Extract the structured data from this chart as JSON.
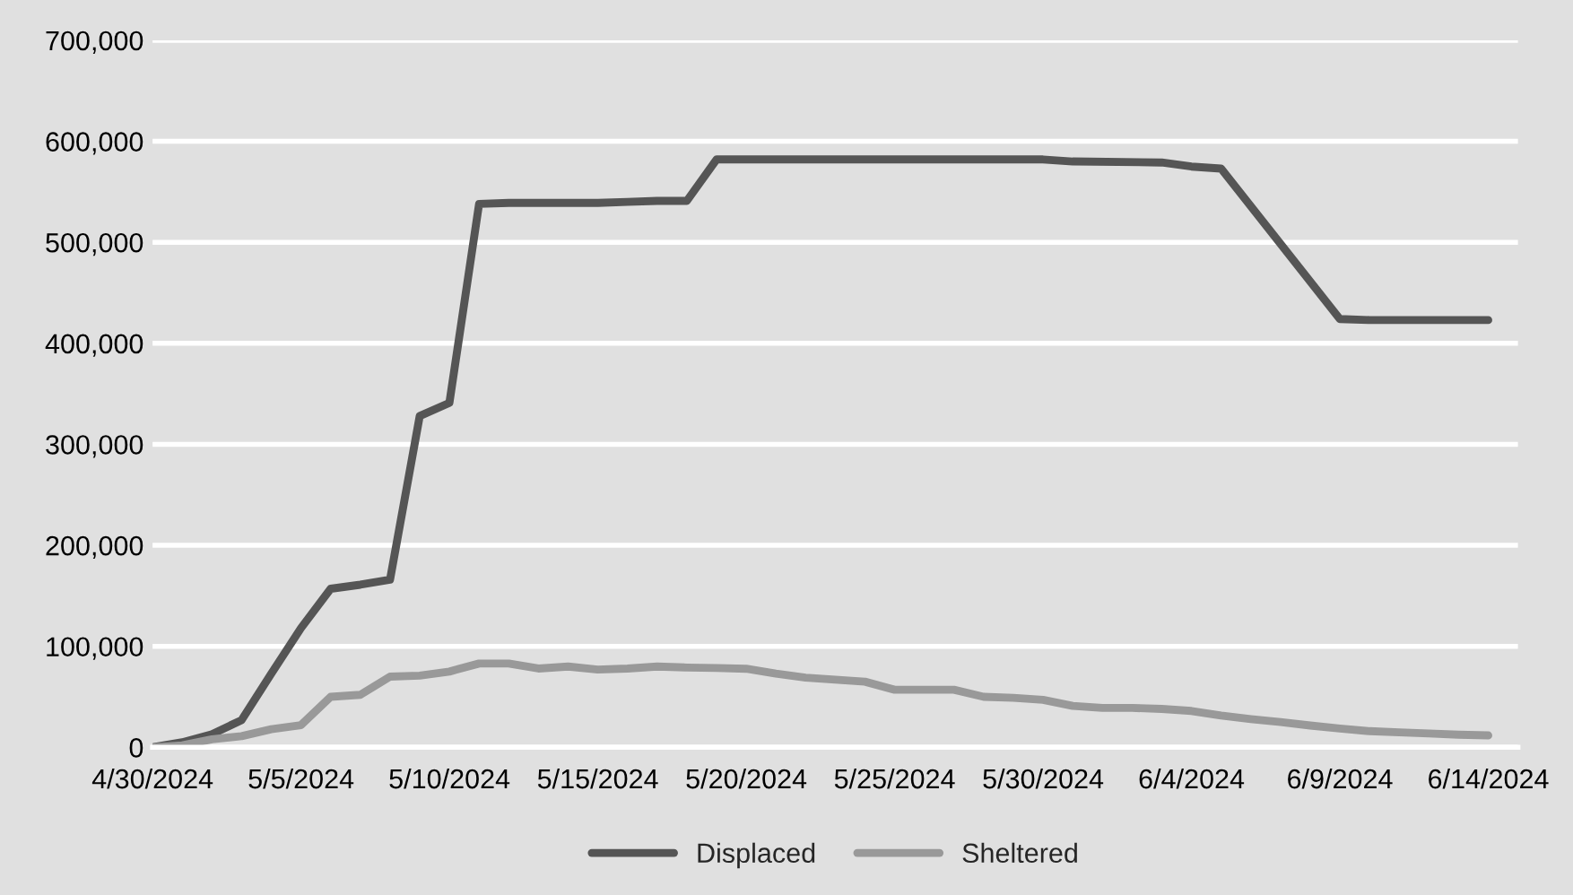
{
  "chart_data": {
    "type": "line",
    "xlim": [
      "2024-04-30",
      "2024-06-15"
    ],
    "xticks": [
      {
        "value": "2024-04-30",
        "label": "4/30/2024"
      },
      {
        "value": "2024-05-05",
        "label": "5/5/2024"
      },
      {
        "value": "2024-05-10",
        "label": "5/10/2024"
      },
      {
        "value": "2024-05-15",
        "label": "5/15/2024"
      },
      {
        "value": "2024-05-20",
        "label": "5/20/2024"
      },
      {
        "value": "2024-05-25",
        "label": "5/25/2024"
      },
      {
        "value": "2024-05-30",
        "label": "5/30/2024"
      },
      {
        "value": "2024-06-04",
        "label": "6/4/2024"
      },
      {
        "value": "2024-06-09",
        "label": "6/9/2024"
      },
      {
        "value": "2024-06-14",
        "label": "6/14/2024"
      }
    ],
    "ylim": [
      0,
      700000
    ],
    "yticks": [
      0,
      {
        "value": 100000,
        "label": "100,000"
      },
      {
        "value": 200000,
        "label": "200,000"
      },
      {
        "value": 300000,
        "label": "300,000"
      },
      {
        "value": 400000,
        "label": "400,000"
      },
      {
        "value": 500000,
        "label": "500,000"
      },
      {
        "value": 600000,
        "label": "600,000"
      },
      {
        "value": 700000,
        "label": "700,000"
      }
    ],
    "grid": "y",
    "legend": "bottom",
    "marker": "none",
    "line_style": "solid",
    "series": [
      {
        "name": "Displaced",
        "color": "#555555",
        "x": [
          "2024-04-30",
          "2024-05-01",
          "2024-05-02",
          "2024-05-03",
          "2024-05-04",
          "2024-05-05",
          "2024-05-06",
          "2024-05-07",
          "2024-05-08",
          "2024-05-09",
          "2024-05-10",
          "2024-05-11",
          "2024-05-12",
          "2024-05-13",
          "2024-05-14",
          "2024-05-15",
          "2024-05-16",
          "2024-05-17",
          "2024-05-18",
          "2024-05-19",
          "2024-05-30",
          "2024-05-31",
          "2024-06-03",
          "2024-06-04",
          "2024-06-05",
          "2024-06-09",
          "2024-06-10",
          "2024-06-14"
        ],
        "values": [
          0,
          5000,
          13000,
          27000,
          73000,
          118000,
          157000,
          161000,
          166000,
          328000,
          341000,
          538000,
          539000,
          539000,
          539000,
          539000,
          540000,
          541000,
          541000,
          582000,
          582000,
          580000,
          579000,
          575000,
          573000,
          424000,
          423000,
          423000
        ]
      },
      {
        "name": "Sheltered",
        "color": "#999999",
        "x": [
          "2024-04-30",
          "2024-05-01",
          "2024-05-02",
          "2024-05-03",
          "2024-05-04",
          "2024-05-05",
          "2024-05-06",
          "2024-05-07",
          "2024-05-08",
          "2024-05-09",
          "2024-05-10",
          "2024-05-11",
          "2024-05-12",
          "2024-05-13",
          "2024-05-14",
          "2024-05-15",
          "2024-05-16",
          "2024-05-17",
          "2024-05-18",
          "2024-05-19",
          "2024-05-20",
          "2024-05-21",
          "2024-05-22",
          "2024-05-23",
          "2024-05-24",
          "2024-05-25",
          "2024-05-26",
          "2024-05-27",
          "2024-05-28",
          "2024-05-29",
          "2024-05-30",
          "2024-05-31",
          "2024-06-01",
          "2024-06-02",
          "2024-06-03",
          "2024-06-04",
          "2024-06-05",
          "2024-06-06",
          "2024-06-07",
          "2024-06-08",
          "2024-06-09",
          "2024-06-10",
          "2024-06-11",
          "2024-06-12",
          "2024-06-13",
          "2024-06-14"
        ],
        "values": [
          0,
          2000,
          8000,
          11000,
          18000,
          22000,
          50000,
          52000,
          70000,
          71000,
          75000,
          83000,
          83000,
          78000,
          80000,
          77000,
          78000,
          80000,
          79000,
          78500,
          77800,
          73000,
          69000,
          67000,
          65000,
          57000,
          57000,
          57000,
          50000,
          49000,
          47000,
          41000,
          39000,
          39000,
          38000,
          36000,
          31500,
          28000,
          25000,
          21600,
          18600,
          16000,
          14800,
          13700,
          12500,
          11800
        ]
      }
    ]
  }
}
